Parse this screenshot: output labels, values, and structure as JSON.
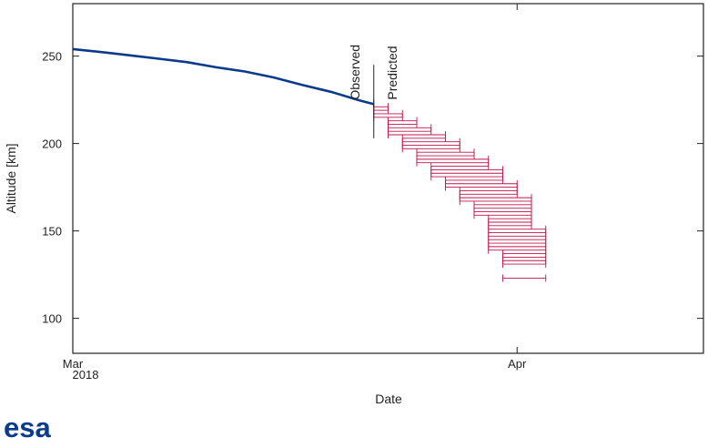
{
  "logo_text": "esa",
  "chart_data": {
    "type": "line",
    "title": "",
    "xlabel": "Date",
    "ylabel": "Altitude [km]",
    "x_unit": "date",
    "xlim": [
      "2018-03-01",
      "2018-04-14"
    ],
    "ylim": [
      80,
      280
    ],
    "grid": false,
    "legend": "none",
    "x_ticks": [
      {
        "x": "2018-03-01",
        "label": "Mar",
        "sublabel": "2018"
      },
      {
        "x": "2018-04-01",
        "label": "Apr",
        "sublabel": ""
      }
    ],
    "y_ticks": [
      100,
      150,
      200,
      250
    ],
    "colors": {
      "observed": "#0b3a8a",
      "predicted": "#c0144a"
    },
    "annotations": [
      {
        "text": "Observed",
        "x": "2018-03-22"
      },
      {
        "text": "Predicted",
        "x": "2018-03-22"
      }
    ],
    "series": [
      {
        "type": "line",
        "x": [
          "2018-03-01",
          "2018-03-03",
          "2018-03-05",
          "2018-03-07",
          "2018-03-09",
          "2018-03-11",
          "2018-03-13",
          "2018-03-15",
          "2018-03-17",
          "2018-03-19",
          "2018-03-21",
          "2018-03-22"
        ],
        "values": [
          254,
          252.3,
          250.4,
          248.5,
          246.5,
          243.6,
          241.2,
          237.8,
          233.5,
          229.6,
          224.7,
          222.5
        ]
      },
      {
        "type": "errorbar",
        "y": [
          223,
          221,
          219,
          217,
          215,
          213,
          211,
          209,
          207,
          205,
          203,
          201,
          199,
          197,
          195,
          193,
          191,
          189,
          187,
          185,
          183,
          181,
          179,
          177,
          175,
          173,
          171,
          169,
          167,
          165,
          163,
          161,
          159,
          157,
          155,
          153,
          151,
          149,
          147,
          145,
          143,
          141,
          139,
          137,
          135,
          133,
          131,
          123
        ],
        "x_low": [
          "2018-03-22",
          "2018-03-22",
          "2018-03-22",
          "2018-03-22",
          "2018-03-22",
          "2018-03-23",
          "2018-03-23",
          "2018-03-23",
          "2018-03-23",
          "2018-03-23",
          "2018-03-24",
          "2018-03-24",
          "2018-03-24",
          "2018-03-24",
          "2018-03-25",
          "2018-03-25",
          "2018-03-25",
          "2018-03-25",
          "2018-03-26",
          "2018-03-26",
          "2018-03-26",
          "2018-03-26",
          "2018-03-27",
          "2018-03-27",
          "2018-03-27",
          "2018-03-28",
          "2018-03-28",
          "2018-03-28",
          "2018-03-28",
          "2018-03-29",
          "2018-03-29",
          "2018-03-29",
          "2018-03-29",
          "2018-03-30",
          "2018-03-30",
          "2018-03-30",
          "2018-03-30",
          "2018-03-30",
          "2018-03-30",
          "2018-03-30",
          "2018-03-30",
          "2018-03-30",
          "2018-03-30",
          "2018-03-31",
          "2018-03-31",
          "2018-03-31",
          "2018-03-31",
          "2018-03-31"
        ],
        "x_high": [
          "2018-03-22",
          "2018-03-23",
          "2018-03-23",
          "2018-03-24",
          "2018-03-24",
          "2018-03-25",
          "2018-03-25",
          "2018-03-26",
          "2018-03-26",
          "2018-03-27",
          "2018-03-27",
          "2018-03-28",
          "2018-03-28",
          "2018-03-28",
          "2018-03-29",
          "2018-03-29",
          "2018-03-30",
          "2018-03-30",
          "2018-03-30",
          "2018-03-31",
          "2018-03-31",
          "2018-03-31",
          "2018-03-31",
          "2018-04-01",
          "2018-04-01",
          "2018-04-01",
          "2018-04-01",
          "2018-04-02",
          "2018-04-02",
          "2018-04-02",
          "2018-04-02",
          "2018-04-02",
          "2018-04-02",
          "2018-04-02",
          "2018-04-02",
          "2018-04-02",
          "2018-04-03",
          "2018-04-03",
          "2018-04-03",
          "2018-04-03",
          "2018-04-03",
          "2018-04-03",
          "2018-04-03",
          "2018-04-03",
          "2018-04-03",
          "2018-04-03",
          "2018-04-03",
          "2018-04-03"
        ]
      }
    ]
  }
}
